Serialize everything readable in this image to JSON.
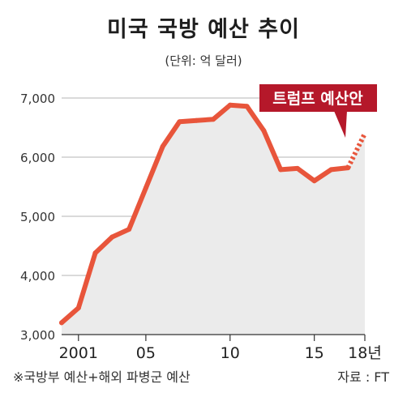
{
  "header": {
    "title": "미국 국방 예산 추이",
    "unit": "(단위: 억 달러)"
  },
  "footer": {
    "note": "※국방부 예산+해외 파병군 예산",
    "source": "자료 : FT"
  },
  "callout": {
    "label": "트럼프 예산안"
  },
  "colors": {
    "line": "#e8553b",
    "area": "#ebebeb",
    "grid": "#b5b5b5",
    "callout_bg": "#b5182a"
  },
  "chart_data": {
    "type": "area",
    "title": "미국 국방 예산 추이",
    "ylabel": "",
    "xlabel": "",
    "unit": "억 달러",
    "ylim": [
      3000,
      7000
    ],
    "yticks": [
      3000,
      4000,
      5000,
      6000,
      7000
    ],
    "ytick_labels": [
      "3,000",
      "4,000",
      "5,000",
      "6,000",
      "7,000"
    ],
    "xticks": [
      {
        "x": 2001,
        "label": "2001"
      },
      {
        "x": 2005,
        "label": "05"
      },
      {
        "x": 2010,
        "label": "10"
      },
      {
        "x": 2015,
        "label": "15"
      },
      {
        "x": 2018,
        "label": "18년"
      }
    ],
    "x": [
      2000,
      2001,
      2002,
      2003,
      2004,
      2005,
      2006,
      2007,
      2008,
      2009,
      2010,
      2011,
      2012,
      2013,
      2014,
      2015,
      2016,
      2017
    ],
    "values": [
      3200,
      3450,
      4380,
      4650,
      4780,
      5480,
      6180,
      6600,
      6620,
      6640,
      6880,
      6860,
      6450,
      5790,
      5810,
      5600,
      5790,
      5820
    ],
    "projection": {
      "label": "트럼프 예산안",
      "x": [
        2017,
        2018
      ],
      "values": [
        5820,
        6400
      ]
    }
  }
}
